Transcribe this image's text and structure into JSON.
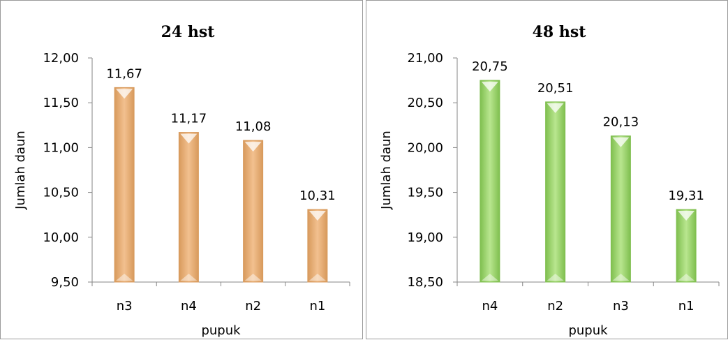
{
  "chart_data": [
    {
      "type": "bar",
      "title": "24 hst",
      "xlabel": "pupuk",
      "ylabel": "Jumlah daun",
      "categories": [
        "n3",
        "n4",
        "n2",
        "n1"
      ],
      "values": [
        11.67,
        11.17,
        11.08,
        10.31
      ],
      "data_labels": [
        "11,67",
        "11,17",
        "11,08",
        "10,31"
      ],
      "ylim": [
        9.5,
        12.0
      ],
      "yticks": [
        9.5,
        10.0,
        10.5,
        11.0,
        11.5,
        12.0
      ],
      "ytick_labels": [
        "9,50",
        "10,00",
        "10,50",
        "11,00",
        "11,50",
        "12,00"
      ],
      "bar_color": "#f2c08f",
      "bar_edge_color": "#d89a5c",
      "grid": false,
      "legend": "none"
    },
    {
      "type": "bar",
      "title": "48 hst",
      "xlabel": "pupuk",
      "ylabel": "Jumlah daun",
      "categories": [
        "n4",
        "n2",
        "n3",
        "n1"
      ],
      "values": [
        20.75,
        20.51,
        20.13,
        19.31
      ],
      "data_labels": [
        "20,75",
        "20,51",
        "20,13",
        "19,31"
      ],
      "ylim": [
        18.5,
        21.0
      ],
      "yticks": [
        18.5,
        19.0,
        19.5,
        20.0,
        20.5,
        21.0
      ],
      "ytick_labels": [
        "18,50",
        "19,00",
        "19,50",
        "20,00",
        "20,50",
        "21,00"
      ],
      "bar_color": "#b9e68f",
      "bar_edge_color": "#7fbf4f",
      "grid": false,
      "legend": "none"
    }
  ]
}
